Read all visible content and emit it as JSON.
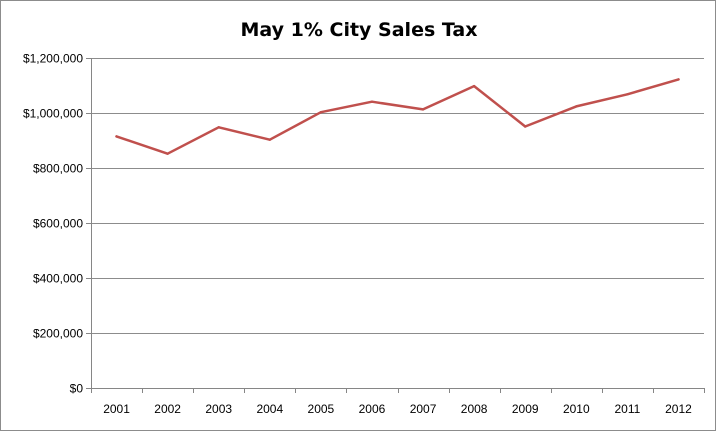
{
  "chart_data": {
    "type": "line",
    "title": "May 1% City Sales Tax",
    "xlabel": "",
    "ylabel": "",
    "categories": [
      "2001",
      "2002",
      "2003",
      "2004",
      "2005",
      "2006",
      "2007",
      "2008",
      "2009",
      "2010",
      "2011",
      "2012"
    ],
    "series": [
      {
        "values": [
          915000,
          852000,
          948000,
          903000,
          1003000,
          1041000,
          1013000,
          1098000,
          951000,
          1024000,
          1068000,
          1122000
        ],
        "color": "#c0504d"
      }
    ],
    "ylim": [
      0,
      1200000
    ],
    "yticks": [
      0,
      200000,
      400000,
      600000,
      800000,
      1000000,
      1200000
    ],
    "ytick_labels": [
      "$0",
      "$200,000",
      "$400,000",
      "$600,000",
      "$800,000",
      "$1,000,000",
      "$1,200,000"
    ],
    "grid": true,
    "legend": "none",
    "grid_color": "#8c8c8c",
    "axis_color": "#868686"
  }
}
